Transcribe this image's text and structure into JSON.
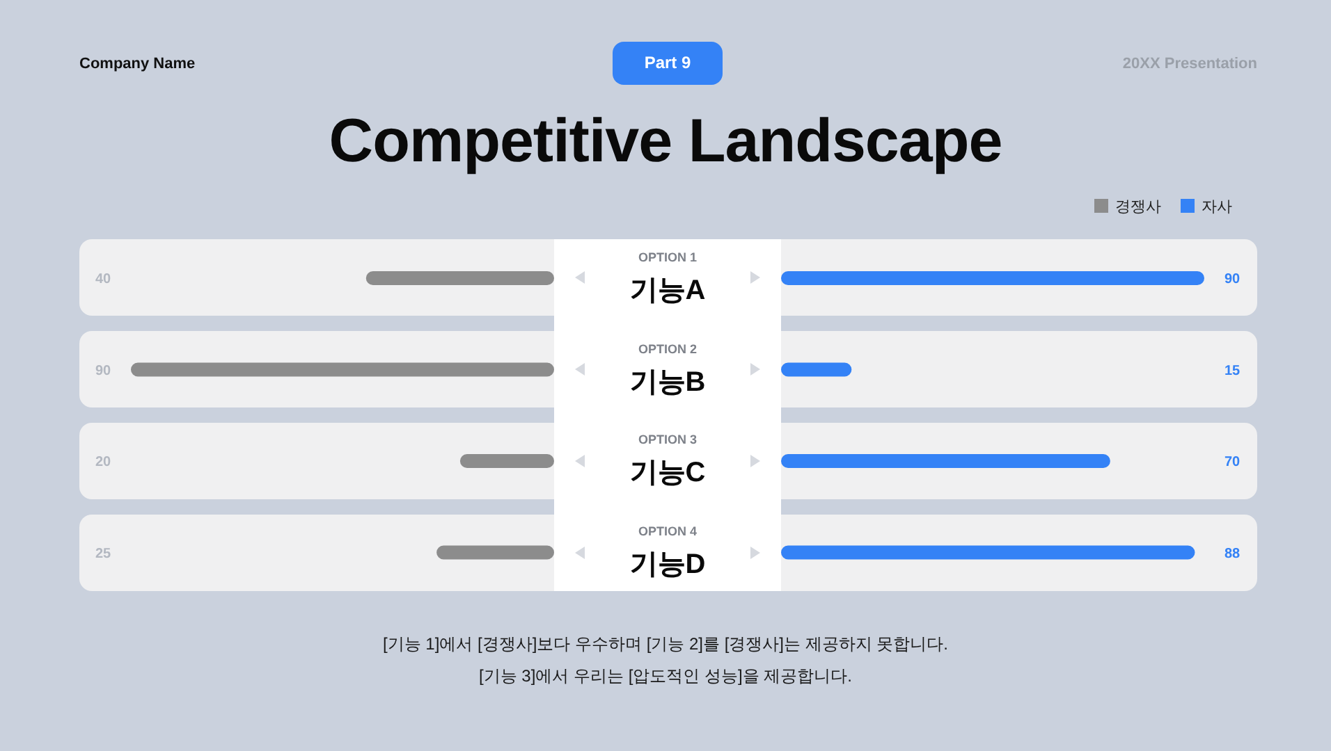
{
  "chart_data": [
    {
      "type": "bar",
      "orientation": "horizontal",
      "title": "Competitive Landscape",
      "categories": [
        "기능A",
        "기능B",
        "기능C",
        "기능D"
      ],
      "series": [
        {
          "name": "경쟁사",
          "color": "#8c8c8c",
          "values": [
            40,
            90,
            20,
            25
          ]
        }
      ],
      "xlim": [
        90,
        0
      ],
      "data_labels": true,
      "legend": "top right",
      "tick_labels": "y",
      "annotations": [
        "Company Name",
        "Part 9",
        "20XX Presentation",
        "OPTION 1",
        "OPTION 2",
        "OPTION 3",
        "OPTION 4",
        "[기능 1]에서 [경쟁사]보다 우수하며 [기능 2]를 [경쟁사]는 제공하지 못합니다.",
        "[기능 3]에서 우리는 [압도적인 성능]을 제공합니다."
      ]
    },
    {
      "type": "bar",
      "orientation": "horizontal",
      "categories": [
        null,
        null,
        null,
        null
      ],
      "series": [
        {
          "name": "자사",
          "color": "#3482f6",
          "values": [
            90,
            15,
            70,
            88
          ]
        }
      ],
      "xlim": [
        0,
        90
      ],
      "data_labels": true,
      "legend": "top right"
    }
  ]
}
